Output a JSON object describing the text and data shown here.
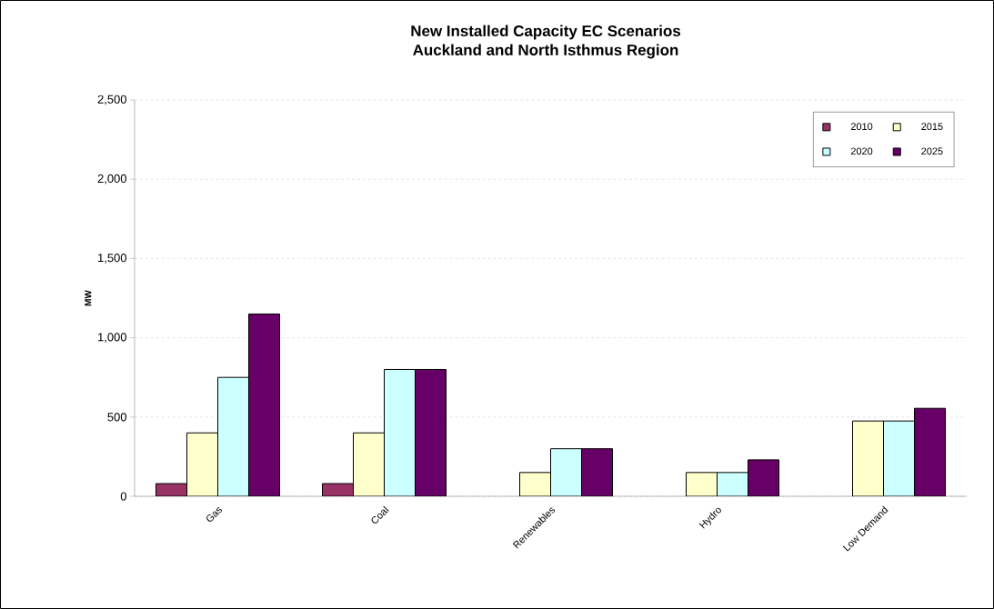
{
  "chart_data": {
    "type": "bar",
    "title": "New Installed Capacity EC Scenarios",
    "subtitle": "Auckland and North Isthmus Region",
    "ylabel": "MW",
    "categories": [
      "Gas",
      "Coal",
      "Renewables",
      "Hydro",
      "Low Demand"
    ],
    "series": [
      {
        "name": "2010",
        "color": "#993366",
        "values": [
          80,
          80,
          null,
          null,
          null
        ]
      },
      {
        "name": "2015",
        "color": "#ffffcc",
        "values": [
          400,
          400,
          150,
          150,
          475
        ]
      },
      {
        "name": "2020",
        "color": "#ccffff",
        "values": [
          750,
          800,
          300,
          150,
          475
        ]
      },
      {
        "name": "2025",
        "color": "#660066",
        "values": [
          1150,
          800,
          300,
          230,
          555
        ]
      }
    ],
    "ylim": [
      0,
      2500
    ],
    "yticks": [
      0,
      {
        "value": 500,
        "label": "500"
      },
      {
        "value": 1000,
        "label": "1,000"
      },
      {
        "value": 1500,
        "label": "1,500"
      },
      {
        "value": 2000,
        "label": "2,000"
      },
      {
        "value": 2500,
        "label": "2,500"
      }
    ],
    "grid": "y",
    "legend": "top right"
  }
}
